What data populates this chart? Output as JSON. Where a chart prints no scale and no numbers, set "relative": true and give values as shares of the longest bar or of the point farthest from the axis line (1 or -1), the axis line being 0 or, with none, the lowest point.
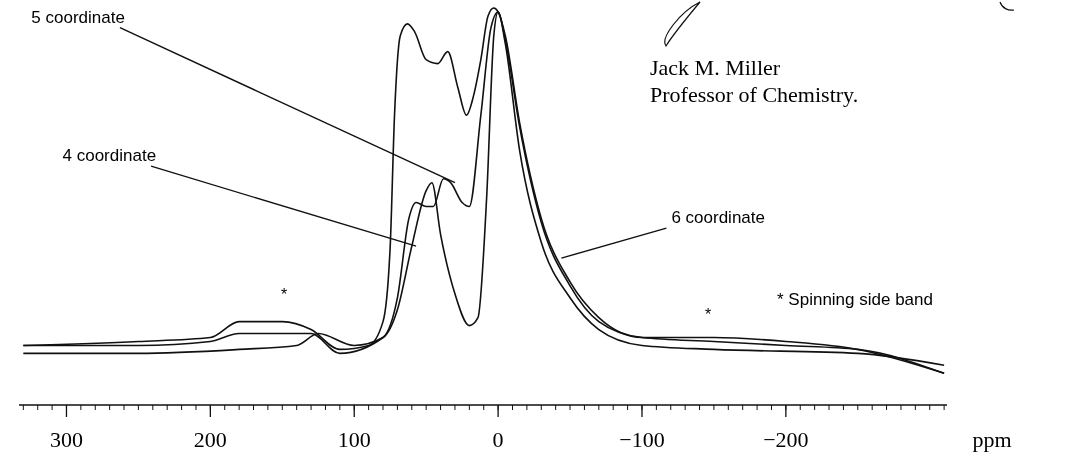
{
  "chart_data": {
    "type": "line",
    "relative": true,
    "xlabel": "ppm",
    "xlim": [
      333,
      -312
    ],
    "xticks": [
      300,
      200,
      100,
      0,
      {
        "value": -100,
        "label": "−100"
      },
      {
        "value": -200,
        "label": "−200"
      }
    ],
    "line_style": "solid",
    "series": [
      {
        "color": "#111111",
        "x": [
          330,
          250,
          180,
          140,
          125,
          100,
          80,
          70,
          60,
          50,
          46,
          40,
          30,
          20,
          14,
          8,
          3,
          0,
          -5,
          -15,
          -30,
          -50,
          -70,
          -100,
          -150,
          -250,
          -310
        ],
        "values": [
          0.13,
          0.13,
          0.14,
          0.15,
          0.18,
          0.15,
          0.17,
          0.24,
          0.4,
          0.54,
          0.56,
          0.43,
          0.28,
          0.2,
          0.22,
          0.52,
          0.93,
          0.99,
          0.91,
          0.64,
          0.41,
          0.27,
          0.19,
          0.15,
          0.14,
          0.13,
          0.1
        ]
      },
      {
        "color": "#111111",
        "x": [
          330,
          250,
          200,
          180,
          150,
          130,
          110,
          80,
          70,
          62,
          57,
          50,
          45,
          38,
          33,
          25,
          20,
          12,
          5,
          0,
          -5,
          -15,
          -30,
          -50,
          -70,
          -100,
          -150,
          -200,
          -250,
          -310
        ],
        "values": [
          0.15,
          0.15,
          0.16,
          0.18,
          0.18,
          0.18,
          0.13,
          0.17,
          0.27,
          0.47,
          0.51,
          0.5,
          0.5,
          0.57,
          0.56,
          0.51,
          0.5,
          0.73,
          0.95,
          0.99,
          0.92,
          0.7,
          0.46,
          0.3,
          0.21,
          0.17,
          0.16,
          0.15,
          0.14,
          0.08
        ]
      },
      {
        "color": "#111111",
        "x": [
          330,
          250,
          200,
          180,
          150,
          130,
          110,
          90,
          80,
          75,
          72,
          68,
          63,
          58,
          50,
          42,
          35,
          28,
          22,
          17,
          12,
          7,
          3,
          0,
          -5,
          -15,
          -30,
          -50,
          -70,
          -100,
          -150,
          -200,
          -250,
          -310
        ],
        "values": [
          0.15,
          0.16,
          0.17,
          0.21,
          0.21,
          0.19,
          0.14,
          0.15,
          0.21,
          0.4,
          0.73,
          0.93,
          0.96,
          0.94,
          0.87,
          0.86,
          0.89,
          0.8,
          0.73,
          0.78,
          0.87,
          0.98,
          1,
          0.99,
          0.93,
          0.71,
          0.47,
          0.31,
          0.22,
          0.17,
          0.17,
          0.16,
          0.14,
          0.08
        ]
      }
    ],
    "annotations": [
      {
        "text": "5 coordinate",
        "x": 30,
        "y": 0.56
      },
      {
        "text": "4 coordinate",
        "x": 57,
        "y": 0.4
      },
      {
        "text": "6 coordinate",
        "x": -44,
        "y": 0.37
      },
      "*",
      "*",
      "* Spinning side band",
      "Jack M. Miller",
      "Professor of Chemistry."
    ]
  }
}
